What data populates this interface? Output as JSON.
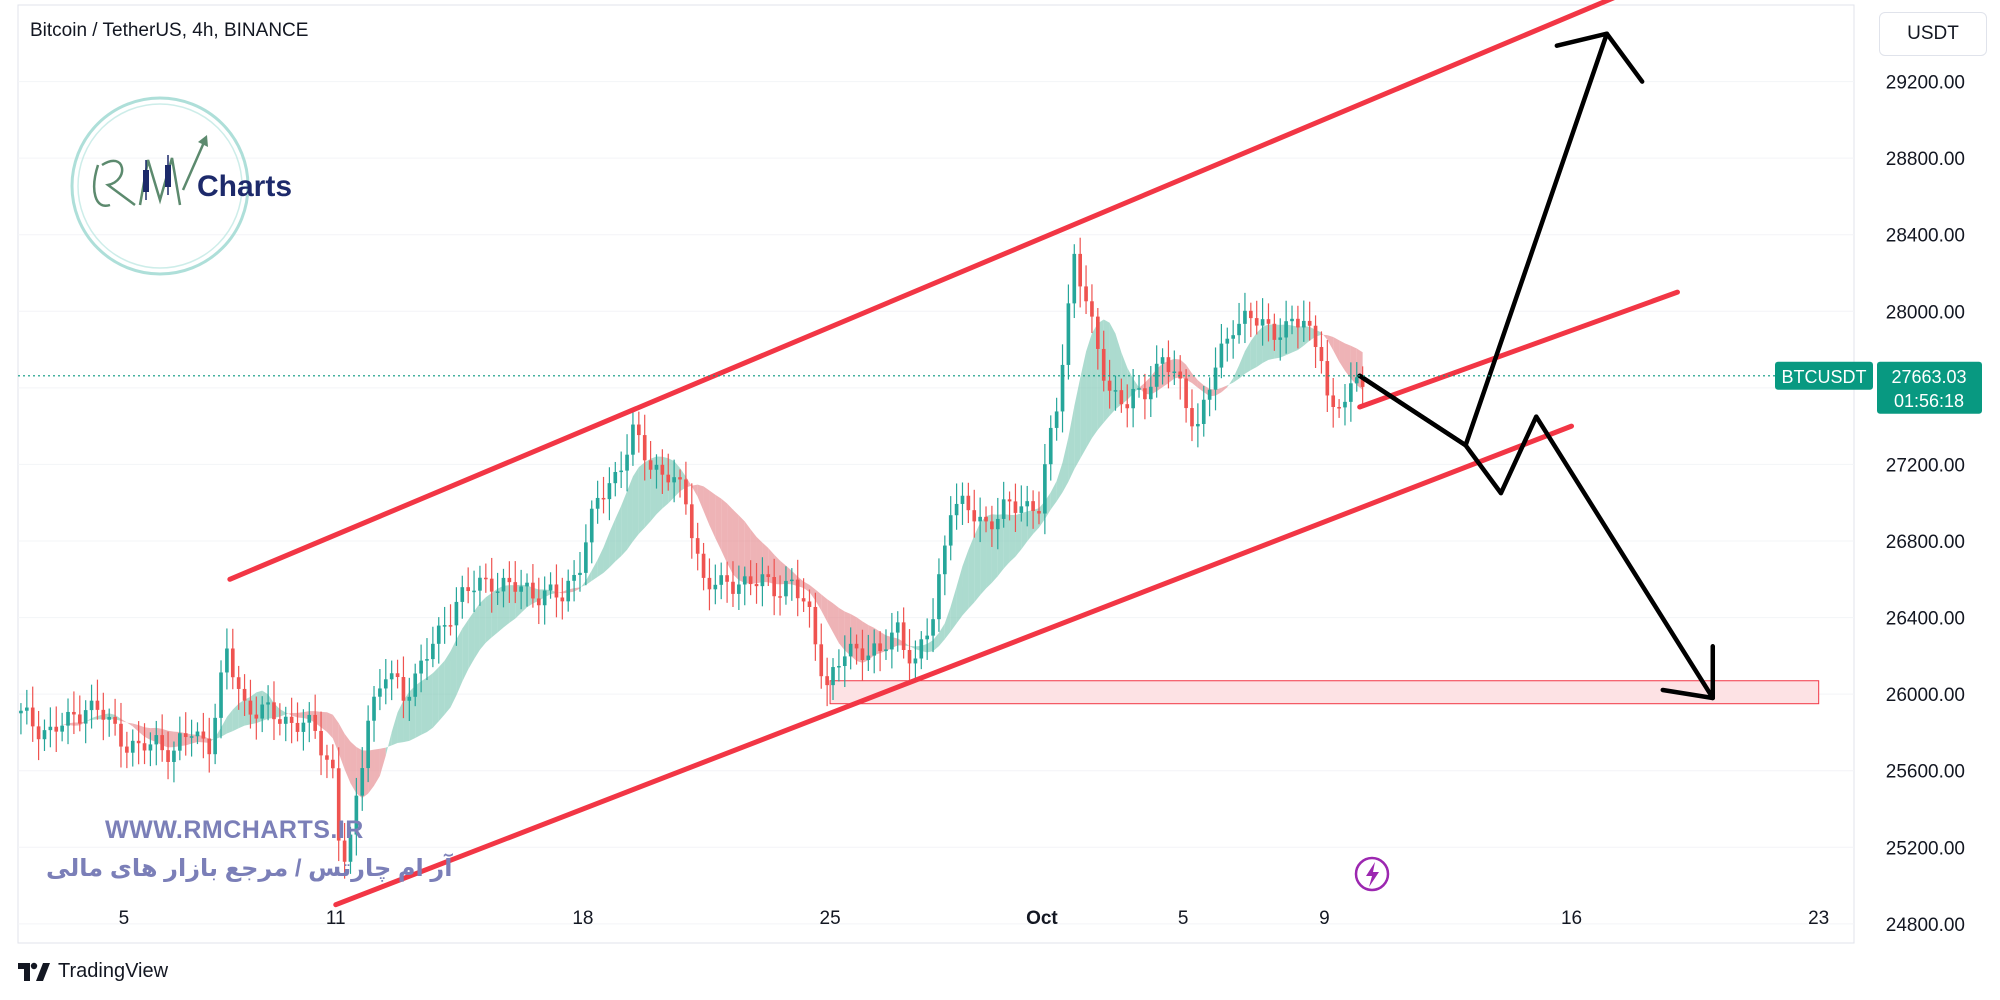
{
  "header": {
    "title": "Bitcoin / TetherUS, 4h, BINANCE",
    "currency": "USDT"
  },
  "watermark": {
    "url": "WWW.RMCHARTS.IR",
    "persian_text": "آر ام چارتس / مرجع بازار های مالی",
    "logo_text": "Charts"
  },
  "footer": {
    "brand": "TradingView"
  },
  "price_label": {
    "symbol": "BTCUSDT",
    "price": "27663.03",
    "countdown": "01:56:18",
    "color": "#089981"
  },
  "colors": {
    "channel": "#f23645",
    "bull": "#26a69a",
    "bear": "#ef5350",
    "zone_fill": "#fde2e4",
    "arrow": "#000000",
    "ribbon_up": "#7fc8b6",
    "ribbon_down": "#e58a8f"
  },
  "icons": {
    "brand": "tradingview-logo-icon",
    "lightning": "lightning-icon"
  },
  "chart_data": {
    "type": "candlestick",
    "title": "Bitcoin / TetherUS, 4h, BINANCE",
    "xlabel": "",
    "ylabel": "",
    "ylim": [
      24700,
      29600
    ],
    "x_range": [
      "Sep 2",
      "Oct 24"
    ],
    "y_ticks": [
      "29200.00",
      "28800.00",
      "28400.00",
      "28000.00",
      "27600.00",
      "27200.00",
      "26800.00",
      "26400.00",
      "26000.00",
      "25600.00",
      "25200.00",
      "24800.00"
    ],
    "x_ticks": [
      {
        "label": "5",
        "date": "Sep 5"
      },
      {
        "label": "11",
        "date": "Sep 11"
      },
      {
        "label": "18",
        "date": "Sep 18"
      },
      {
        "label": "25",
        "date": "Sep 25"
      },
      {
        "label": "Oct",
        "date": "Oct 1"
      },
      {
        "label": "5",
        "date": "Oct 5"
      },
      {
        "label": "9",
        "date": "Oct 9"
      },
      {
        "label": "16",
        "date": "Oct 16"
      },
      {
        "label": "23",
        "date": "Oct 23"
      }
    ],
    "last_price": 27663.03,
    "price_path": [
      [
        "Sep 2 00:00",
        25900
      ],
      [
        "Sep 3 00:00",
        25800
      ],
      [
        "Sep 3 12:00",
        25850
      ],
      [
        "Sep 4 00:00",
        25950
      ],
      [
        "Sep 4 12:00",
        25880
      ],
      [
        "Sep 5 00:00",
        25780
      ],
      [
        "Sep 5 12:00",
        25700
      ],
      [
        "Sep 6 00:00",
        25750
      ],
      [
        "Sep 6 12:00",
        25700
      ],
      [
        "Sep 7 00:00",
        25800
      ],
      [
        "Sep 7 12:00",
        25750
      ],
      [
        "Sep 8 00:00",
        26200
      ],
      [
        "Sep 8 12:00",
        25950
      ],
      [
        "Sep 9 00:00",
        25900
      ],
      [
        "Sep 9 12:00",
        25880
      ],
      [
        "Sep 10 00:00",
        25850
      ],
      [
        "Sep 10 12:00",
        25800
      ],
      [
        "Sep 11 00:00",
        25600
      ],
      [
        "Sep 11 06:00",
        25100
      ],
      [
        "Sep 11 12:00",
        25200
      ],
      [
        "Sep 12 00:00",
        25900
      ],
      [
        "Sep 12 12:00",
        26100
      ],
      [
        "Sep 13 00:00",
        26000
      ],
      [
        "Sep 13 12:00",
        26150
      ],
      [
        "Sep 14 00:00",
        26300
      ],
      [
        "Sep 14 12:00",
        26500
      ],
      [
        "Sep 15 00:00",
        26550
      ],
      [
        "Sep 15 12:00",
        26600
      ],
      [
        "Sep 16 00:00",
        26550
      ],
      [
        "Sep 16 12:00",
        26550
      ],
      [
        "Sep 17 00:00",
        26520
      ],
      [
        "Sep 17 12:00",
        26500
      ],
      [
        "Sep 18 00:00",
        26700
      ],
      [
        "Sep 18 12:00",
        27000
      ],
      [
        "Sep 19 00:00",
        27150
      ],
      [
        "Sep 19 12:00",
        27350
      ],
      [
        "Sep 20 00:00",
        27200
      ],
      [
        "Sep 20 12:00",
        27150
      ],
      [
        "Sep 21 00:00",
        27000
      ],
      [
        "Sep 21 12:00",
        26600
      ],
      [
        "Sep 22 00:00",
        26550
      ],
      [
        "Sep 22 12:00",
        26600
      ],
      [
        "Sep 23 00:00",
        26580
      ],
      [
        "Sep 23 12:00",
        26560
      ],
      [
        "Sep 24 00:00",
        26580
      ],
      [
        "Sep 24 12:00",
        26400
      ],
      [
        "Sep 25 00:00",
        26050
      ],
      [
        "Sep 25 12:00",
        26200
      ],
      [
        "Sep 26 00:00",
        26250
      ],
      [
        "Sep 26 12:00",
        26200
      ],
      [
        "Sep 27 00:00",
        26350
      ],
      [
        "Sep 27 12:00",
        26150
      ],
      [
        "Sep 28 00:00",
        26400
      ],
      [
        "Sep 28 12:00",
        27000
      ],
      [
        "Sep 29 00:00",
        26950
      ],
      [
        "Sep 29 12:00",
        26900
      ],
      [
        "Sep 30 00:00",
        26950
      ],
      [
        "Sep 30 12:00",
        27000
      ],
      [
        "Oct 1 00:00",
        26980
      ],
      [
        "Oct 1 12:00",
        27500
      ],
      [
        "Oct 2 00:00",
        28300
      ],
      [
        "Oct 2 12:00",
        27900
      ],
      [
        "Oct 3 00:00",
        27600
      ],
      [
        "Oct 3 12:00",
        27500
      ],
      [
        "Oct 4 00:00",
        27600
      ],
      [
        "Oct 4 12:00",
        27750
      ],
      [
        "Oct 5 00:00",
        27600
      ],
      [
        "Oct 5 12:00",
        27400
      ],
      [
        "Oct 6 00:00",
        27700
      ],
      [
        "Oct 6 12:00",
        27950
      ],
      [
        "Oct 7 00:00",
        27950
      ],
      [
        "Oct 7 12:00",
        27920
      ],
      [
        "Oct 8 00:00",
        27900
      ],
      [
        "Oct 8 12:00",
        27950
      ],
      [
        "Oct 9 00:00",
        27800
      ],
      [
        "Oct 9 06:00",
        27400
      ],
      [
        "Oct 9 12:00",
        27500
      ],
      [
        "Oct 10 00:00",
        27663
      ]
    ],
    "overlays": {
      "channel_upper": [
        [
          "Sep 8",
          26600
        ],
        [
          "Oct 18",
          29700
        ]
      ],
      "channel_middle": [
        [
          "Oct 10",
          27500
        ],
        [
          "Oct 19",
          28100
        ]
      ],
      "channel_lower": [
        [
          "Sep 11",
          24900
        ],
        [
          "Oct 16",
          27400
        ]
      ],
      "support_zone": {
        "from": "Sep 25",
        "to": "Oct 23",
        "low": 25950,
        "high": 26070
      },
      "projection_up": [
        [
          "Oct 10",
          27663
        ],
        [
          "Oct 13",
          27300
        ],
        [
          "Oct 17",
          29450
        ],
        [
          "Oct 18",
          29200
        ]
      ],
      "projection_down": [
        [
          "Oct 10",
          27663
        ],
        [
          "Oct 13",
          27300
        ],
        [
          "Oct 14",
          27050
        ],
        [
          "Oct 15",
          27450
        ],
        [
          "Oct 20",
          25980
        ],
        [
          "Oct 20",
          26250
        ]
      ]
    }
  }
}
